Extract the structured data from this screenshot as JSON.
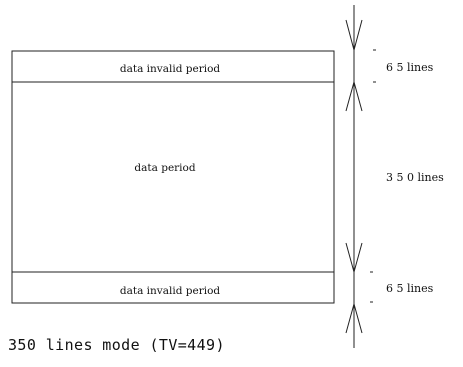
{
  "regions": {
    "top_invalid": "data invalid period",
    "data": "data period",
    "bottom_invalid": "data invalid period"
  },
  "dimensions": {
    "top": "6 5 lines",
    "middle": "3 5 0 lines",
    "bottom": "6 5 lines"
  },
  "caption": "350 lines mode (TV=449)"
}
